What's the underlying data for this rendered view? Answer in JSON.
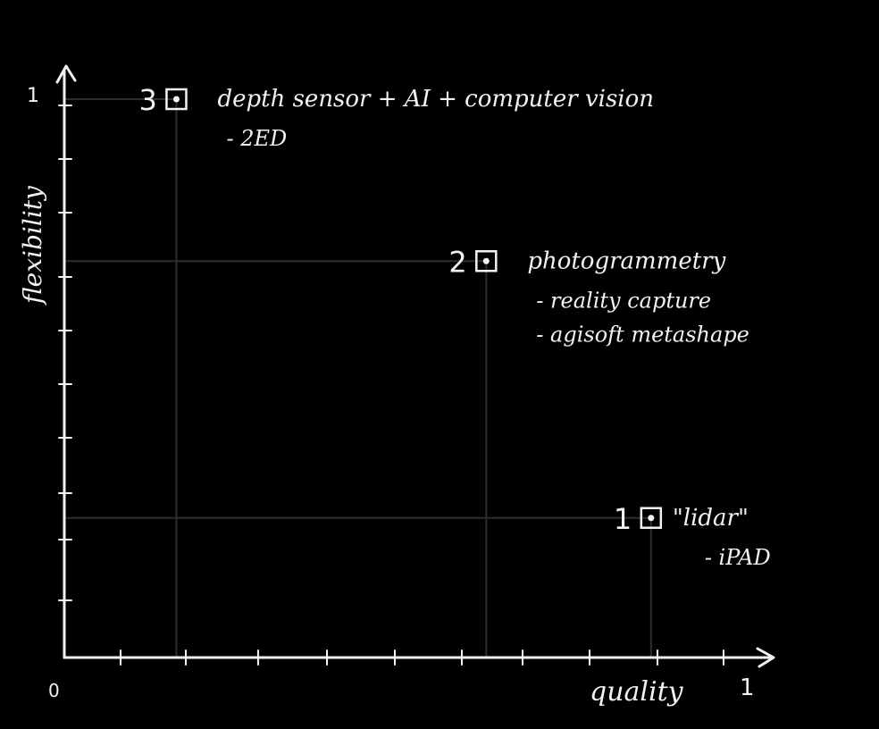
{
  "axes": {
    "x_label": "quality",
    "y_label": "flexibility",
    "origin_label": "0",
    "x_max_label": "1",
    "y_max_label": "1"
  },
  "colors": {
    "background": "#000000",
    "ink": "#f2f2f2",
    "guide": "#2e2e2e"
  },
  "chart_data": {
    "type": "scatter",
    "xlabel": "quality",
    "ylabel": "flexibility",
    "xlim": [
      0,
      1
    ],
    "ylim": [
      0,
      1
    ],
    "points": [
      {
        "number": "3",
        "title": "depth sensor + AI + computer vision",
        "notes": [
          "- 2ED"
        ],
        "x": 0.17,
        "y": 1.0
      },
      {
        "number": "2",
        "title": "photogrammetry",
        "notes": [
          "- reality capture",
          "- agisoft metashape"
        ],
        "x": 0.64,
        "y": 0.71
      },
      {
        "number": "1",
        "title": "\"lidar\"",
        "notes": [
          "- iPAD"
        ],
        "x": 0.89,
        "y": 0.25
      }
    ]
  }
}
